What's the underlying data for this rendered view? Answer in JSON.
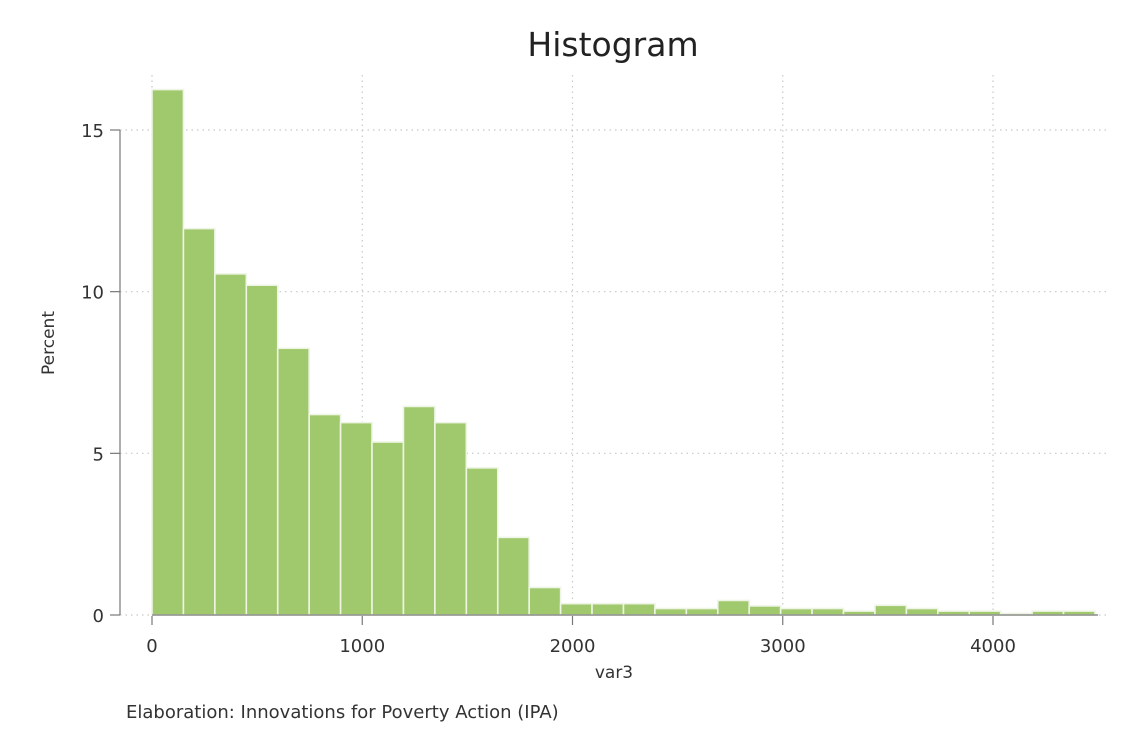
{
  "chart_data": {
    "type": "bar",
    "title": "Histogram",
    "xlabel": "var3",
    "ylabel": "Percent",
    "note": "Elaboration: Innovations for Poverty Action (IPA)",
    "xlim": [
      0,
      4500
    ],
    "ylim": [
      0,
      16.5
    ],
    "x_ticks": [
      0,
      1000,
      2000,
      3000,
      4000
    ],
    "y_ticks": [
      0,
      5,
      10,
      15
    ],
    "grid": true,
    "bar_color": "#a0c86c",
    "bin_width": 149.5,
    "bin_start": 0,
    "values": [
      16.25,
      11.95,
      10.55,
      10.2,
      8.25,
      6.2,
      5.95,
      5.35,
      6.45,
      5.95,
      4.55,
      2.4,
      0.85,
      0.35,
      0.35,
      0.35,
      0.2,
      0.2,
      0.45,
      0.28,
      0.2,
      0.2,
      0.12,
      0.3,
      0.2,
      0.12,
      0.12,
      0.05,
      0.12,
      0.12
    ]
  }
}
